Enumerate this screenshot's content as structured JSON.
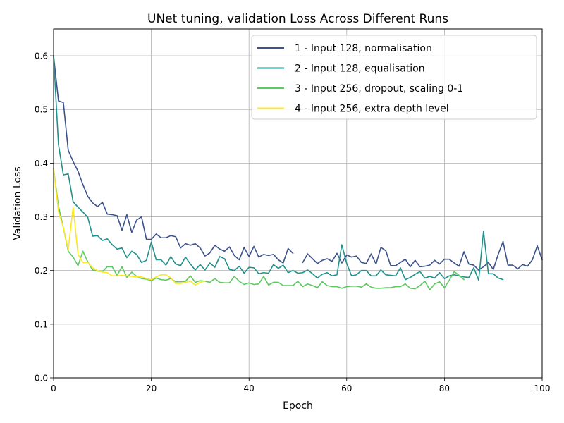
{
  "chart_data": {
    "type": "line",
    "title": "UNet tuning, validation Loss Across Different Runs",
    "xlabel": "Epoch",
    "ylabel": "Validation Loss",
    "xlim": [
      0,
      100
    ],
    "ylim": [
      0,
      0.65
    ],
    "xticks": [
      0,
      20,
      40,
      60,
      80,
      100
    ],
    "xtick_labels": [
      "0",
      "20",
      "40",
      "60",
      "80",
      "100"
    ],
    "yticks": [
      0.0,
      0.1,
      0.2,
      0.3,
      0.4,
      0.5,
      0.6
    ],
    "ytick_labels": [
      "0.0",
      "0.1",
      "0.2",
      "0.3",
      "0.4",
      "0.5",
      "0.6"
    ],
    "grid": true,
    "legend_position": "top-right",
    "series": [
      {
        "name": "1 - Input 128, normalisation",
        "color": "#3b528b",
        "segments": [
          {
            "x": [
              0,
              1,
              2,
              3,
              4,
              5,
              6,
              7,
              8,
              9,
              10,
              11,
              12,
              13,
              14,
              15,
              16,
              17,
              18,
              19,
              20,
              21,
              22,
              23,
              24,
              25,
              26,
              27,
              28,
              29,
              30,
              31,
              32,
              33,
              34,
              35,
              36,
              37,
              38,
              39,
              40,
              41,
              42,
              43,
              44,
              45,
              46,
              47,
              48,
              49
            ],
            "y": [
              0.6,
              0.516,
              0.513,
              0.424,
              0.403,
              0.385,
              0.36,
              0.338,
              0.326,
              0.319,
              0.327,
              0.305,
              0.304,
              0.302,
              0.275,
              0.304,
              0.271,
              0.294,
              0.3,
              0.258,
              0.258,
              0.268,
              0.261,
              0.261,
              0.265,
              0.263,
              0.242,
              0.25,
              0.247,
              0.25,
              0.242,
              0.227,
              0.233,
              0.247,
              0.24,
              0.236,
              0.244,
              0.228,
              0.22,
              0.243,
              0.226,
              0.245,
              0.225,
              0.23,
              0.228,
              0.23,
              0.22,
              0.214,
              0.241,
              0.232
            ]
          },
          {
            "x": [
              51,
              52,
              53,
              54,
              55,
              56,
              57,
              58,
              59,
              60,
              61,
              62,
              63,
              64,
              65,
              66,
              67,
              68,
              69,
              70,
              71,
              72,
              73,
              74,
              75,
              76,
              77,
              78,
              79,
              80,
              81,
              82,
              83,
              84,
              85,
              86,
              87,
              88,
              89,
              90,
              91,
              92,
              93,
              94,
              95,
              96,
              97,
              98,
              99,
              100
            ],
            "y": [
              0.215,
              0.231,
              0.222,
              0.213,
              0.219,
              0.222,
              0.217,
              0.232,
              0.214,
              0.229,
              0.225,
              0.227,
              0.215,
              0.213,
              0.231,
              0.212,
              0.243,
              0.237,
              0.209,
              0.209,
              0.215,
              0.221,
              0.207,
              0.219,
              0.207,
              0.208,
              0.21,
              0.219,
              0.212,
              0.221,
              0.221,
              0.214,
              0.208,
              0.235,
              0.212,
              0.21,
              0.201,
              0.207,
              0.215,
              0.202,
              0.23,
              0.254,
              0.21,
              0.21,
              0.203,
              0.211,
              0.208,
              0.22,
              0.246,
              0.22
            ]
          }
        ]
      },
      {
        "name": "2 - Input 128, equalisation",
        "color": "#21918c",
        "segments": [
          {
            "x": [
              0,
              1,
              2,
              3,
              4,
              5,
              6,
              7,
              8,
              9,
              10,
              11,
              12,
              13,
              14,
              15,
              16,
              17,
              18,
              19,
              20,
              21,
              22,
              23,
              24,
              25,
              26,
              27,
              28,
              29,
              30,
              31,
              32,
              33,
              34,
              35,
              36,
              37,
              38,
              39,
              40,
              41,
              42,
              43,
              44,
              45,
              46,
              47,
              48,
              49,
              50,
              51,
              52,
              53,
              54,
              55,
              56,
              57,
              58,
              59,
              60,
              61,
              62,
              63,
              64,
              65,
              66,
              67,
              68,
              69,
              70,
              71,
              72,
              73,
              74,
              75,
              76,
              77,
              78,
              79,
              80,
              81,
              82,
              83,
              84,
              85,
              86,
              87,
              88,
              89,
              90,
              91,
              92
            ],
            "y": [
              0.6,
              0.435,
              0.378,
              0.38,
              0.328,
              0.318,
              0.309,
              0.299,
              0.264,
              0.265,
              0.256,
              0.259,
              0.248,
              0.24,
              0.242,
              0.224,
              0.236,
              0.23,
              0.215,
              0.219,
              0.253,
              0.22,
              0.22,
              0.21,
              0.226,
              0.212,
              0.209,
              0.225,
              0.212,
              0.201,
              0.211,
              0.201,
              0.214,
              0.206,
              0.226,
              0.222,
              0.202,
              0.2,
              0.208,
              0.195,
              0.206,
              0.205,
              0.194,
              0.196,
              0.195,
              0.211,
              0.204,
              0.21,
              0.196,
              0.2,
              0.195,
              0.196,
              0.201,
              0.194,
              0.186,
              0.193,
              0.196,
              0.19,
              0.192,
              0.248,
              0.213,
              0.19,
              0.192,
              0.2,
              0.2,
              0.19,
              0.19,
              0.201,
              0.192,
              0.191,
              0.19,
              0.205,
              0.183,
              0.187,
              0.193,
              0.198,
              0.186,
              0.189,
              0.186,
              0.196,
              0.185,
              0.19,
              0.192,
              0.19,
              0.188,
              0.187,
              0.205,
              0.182,
              0.273,
              0.194,
              0.194,
              0.186,
              0.183
            ]
          }
        ]
      },
      {
        "name": "3 - Input 256, dropout, scaling 0-1",
        "color": "#5ec962",
        "segments": [
          {
            "x": [
              0,
              1,
              2,
              3,
              4,
              5,
              6,
              7,
              8,
              9,
              10,
              11,
              12,
              13,
              14,
              15,
              16,
              17,
              18,
              19,
              20,
              21,
              22,
              23,
              24,
              25,
              26,
              27,
              28,
              29,
              30,
              31,
              32,
              33,
              34,
              35,
              36,
              37,
              38,
              39,
              40,
              41,
              42,
              43,
              44,
              45,
              46,
              47,
              48,
              49,
              50,
              51,
              52,
              53,
              54,
              55,
              56,
              57,
              58,
              59,
              60,
              61,
              62,
              63,
              64,
              65,
              66,
              67,
              68,
              69,
              70,
              71,
              72,
              73,
              74,
              75,
              76,
              77,
              78,
              79,
              80,
              81,
              82,
              83,
              84
            ],
            "y": [
              0.39,
              0.32,
              0.28,
              0.236,
              0.225,
              0.209,
              0.236,
              0.216,
              0.201,
              0.199,
              0.198,
              0.207,
              0.207,
              0.191,
              0.207,
              0.187,
              0.197,
              0.189,
              0.185,
              0.184,
              0.181,
              0.186,
              0.183,
              0.182,
              0.185,
              0.179,
              0.179,
              0.18,
              0.19,
              0.178,
              0.181,
              0.18,
              0.178,
              0.185,
              0.178,
              0.177,
              0.177,
              0.189,
              0.18,
              0.174,
              0.177,
              0.174,
              0.175,
              0.189,
              0.173,
              0.178,
              0.178,
              0.172,
              0.172,
              0.172,
              0.18,
              0.17,
              0.175,
              0.172,
              0.168,
              0.179,
              0.172,
              0.17,
              0.17,
              0.167,
              0.17,
              0.171,
              0.171,
              0.169,
              0.175,
              0.169,
              0.167,
              0.167,
              0.168,
              0.168,
              0.17,
              0.17,
              0.175,
              0.167,
              0.166,
              0.172,
              0.18,
              0.164,
              0.175,
              0.179,
              0.168,
              0.182,
              0.198,
              0.191,
              0.183
            ]
          }
        ]
      },
      {
        "name": "4 - Input 256, extra depth level",
        "color": "#fde725",
        "segments": [
          {
            "x": [
              0,
              1,
              2,
              3,
              4,
              5,
              6,
              7,
              8,
              9,
              10,
              11,
              12,
              13,
              14,
              15,
              16,
              17,
              18,
              19,
              20,
              21,
              22,
              23,
              24,
              25,
              26,
              27,
              28,
              29,
              30,
              31
            ],
            "y": [
              0.39,
              0.31,
              0.28,
              0.239,
              0.318,
              0.23,
              0.215,
              0.215,
              0.205,
              0.2,
              0.197,
              0.196,
              0.19,
              0.19,
              0.191,
              0.19,
              0.189,
              0.188,
              0.188,
              0.185,
              0.183,
              0.188,
              0.192,
              0.192,
              0.186,
              0.176,
              0.176,
              0.178,
              0.18,
              0.173,
              0.178,
              0.18
            ]
          }
        ]
      }
    ]
  }
}
